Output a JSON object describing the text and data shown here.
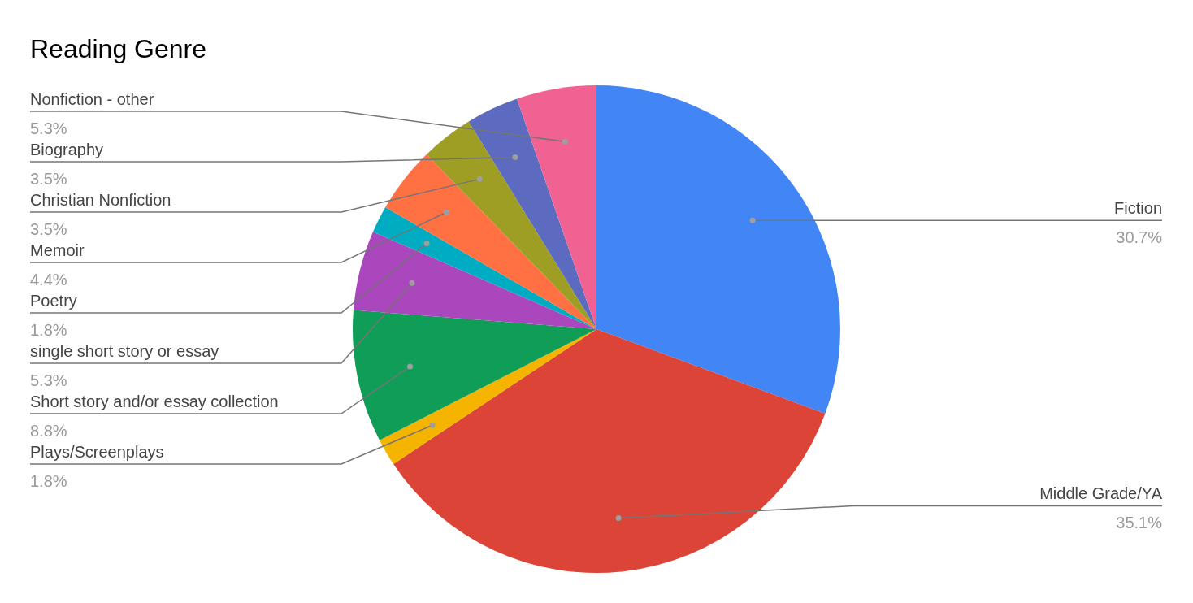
{
  "chart_data": {
    "type": "pie",
    "title": "Reading Genre",
    "categories": [
      "Fiction",
      "Middle Grade/YA",
      "Plays/Screenplays",
      "Short story and/or essay collection",
      "single short story or essay",
      "Poetry",
      "Memoir",
      "Christian Nonfiction",
      "Biography",
      "Nonfiction - other"
    ],
    "values": [
      30.7,
      35.1,
      1.8,
      8.8,
      5.3,
      1.8,
      4.4,
      3.5,
      3.5,
      5.3
    ],
    "value_labels": [
      "30.7%",
      "35.1%",
      "1.8%",
      "8.8%",
      "5.3%",
      "1.8%",
      "4.4%",
      "3.5%",
      "3.5%",
      "5.3%"
    ],
    "colors": [
      "#4285f4",
      "#db4437",
      "#f4b400",
      "#0f9d58",
      "#ab47bc",
      "#00acc1",
      "#ff7043",
      "#9e9d24",
      "#5c6bc0",
      "#f06292"
    ]
  }
}
